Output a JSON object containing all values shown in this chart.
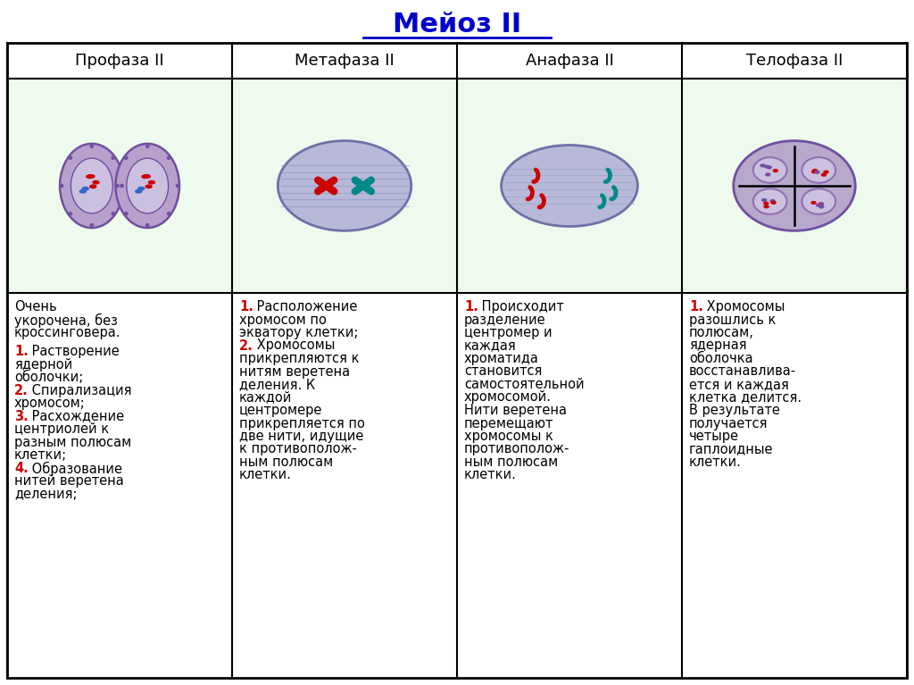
{
  "title": "Мейоз II",
  "title_color": "#0000CC",
  "headers": [
    "Профаза II",
    "Метафаза II",
    "Анафаза II",
    "Телофаза II"
  ],
  "col_texts": [
    "Очень\nукорочена, без\nкроссинговера.\n\n·1. Растворение\nядерной\nоболочки;\n·2. Спирализация\nхромосом;\n·3. Расхождение\nцентриолей к\nразным полюсам\nклетки;\n·4. Образование\nнитей веретена\nделения;",
    "·1. Расположение\nхромосом по\nэкватору клетки;\n·2. Хромосомы\nприкрепляются к\nнитям веретена\nделения. К\nкаждой\nцентромере\nприкрепляется по\nдве нити, идущие\nк противополож-\nным полюсам\nклетки.",
    "·1. Происходит\nразделение\nцентромер и\nкаждая\nхроматида\nстановится\nсамостоятельной\nхромосомой.\nНити веретена\nперемещают\nхромосомы к\nпротивополож-\nным полюсам\nклетки.",
    "·1. Хромосомы\nразошлись к\nполюсам,\nядерная\nоболочка\nвосстанавлива-\nется и каждая\nклетка делится.\nВ результате\nполучается\nчетыре\nгаплоидные\nклетки."
  ]
}
